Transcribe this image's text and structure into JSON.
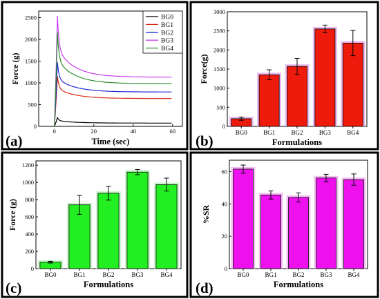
{
  "figure": {
    "colors": {
      "frame": "#000000",
      "background": "#ffffff",
      "panel_bg": "#ffffff"
    }
  },
  "chart_data": [
    {
      "panel_label": "(a)",
      "type": "line",
      "xlabel": "Time (sec)",
      "ylabel": "Force (g)",
      "xlim": [
        -8,
        65
      ],
      "ylim": [
        0,
        2650
      ],
      "xticks": [
        0,
        20,
        40,
        60
      ],
      "yticks": [
        0,
        500,
        1000,
        1500,
        2000,
        2500
      ],
      "grid": false,
      "legend_placement": "top-right",
      "series": [
        {
          "name": "BG0",
          "color": "#000000",
          "peak_x": 1.5,
          "peak": 200,
          "plateau": 75
        },
        {
          "name": "BG1",
          "color": "#d62a12",
          "peak_x": 1.5,
          "peak": 1150,
          "plateau": 640
        },
        {
          "name": "BG2",
          "color": "#1f2bd9",
          "peak_x": 1.5,
          "peak": 1470,
          "plateau": 790
        },
        {
          "name": "BG3",
          "color": "#c83cf0",
          "peak_x": 1.5,
          "peak": 2540,
          "plateau": 1130
        },
        {
          "name": "BG4",
          "color": "#2e8b2e",
          "peak_x": 1.5,
          "peak": 2160,
          "plateau": 980
        }
      ]
    },
    {
      "panel_label": "(b)",
      "type": "bar",
      "xlabel": "Formulations",
      "ylabel": "Force(g)",
      "categories": [
        "BG0",
        "BG1",
        "BG2",
        "BG3",
        "BG4"
      ],
      "values": [
        200,
        1350,
        1570,
        2550,
        2180
      ],
      "errors": [
        40,
        130,
        210,
        100,
        330
      ],
      "ylim": [
        0,
        3000
      ],
      "yticks": [
        0,
        500,
        1000,
        1500,
        2000,
        2500,
        3000
      ],
      "bar_color": "#ee1a0c",
      "halo_color": "#e9b6f0"
    },
    {
      "panel_label": "(c)",
      "type": "bar",
      "xlabel": "Formulations",
      "ylabel": "Force (g)",
      "categories": [
        "BG0",
        "BG1",
        "BG2",
        "BG3",
        "BG4"
      ],
      "values": [
        75,
        740,
        875,
        1120,
        975
      ],
      "errors": [
        10,
        110,
        80,
        30,
        75
      ],
      "ylim": [
        0,
        1250
      ],
      "yticks": [
        0,
        200,
        400,
        600,
        800,
        1000,
        1200
      ],
      "bar_color": "#22ee22",
      "halo_color": "#c8f5c8"
    },
    {
      "panel_label": "(d)",
      "type": "bar",
      "xlabel": "Formulations",
      "ylabel": "%SR",
      "categories": [
        "BG0",
        "BG1",
        "BG2",
        "BG3",
        "BG4"
      ],
      "values": [
        61.5,
        45.5,
        44,
        56,
        55
      ],
      "errors": [
        2.5,
        2.5,
        2.8,
        2.3,
        3.5
      ],
      "ylim": [
        0,
        67
      ],
      "yticks": [
        0,
        20,
        40,
        60
      ],
      "bar_color": "#ee11ee",
      "halo_color": "#f3b7f3"
    }
  ]
}
